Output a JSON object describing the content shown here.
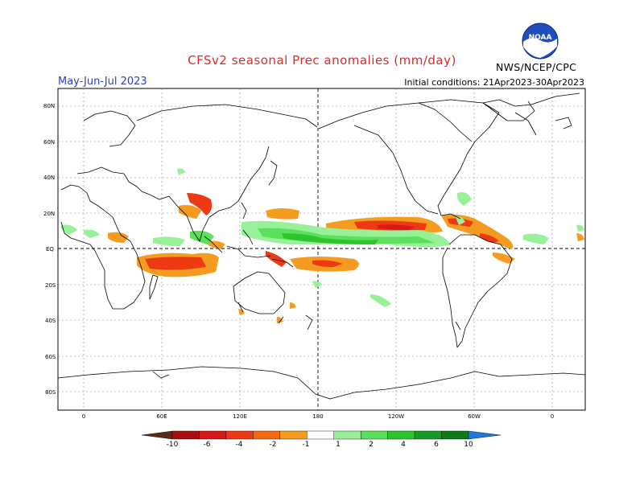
{
  "header": {
    "title": "CFSv2 seasonal Prec anomalies (mm/day)",
    "season": "May-Jun-Jul 2023",
    "initial_conditions": "Initial conditions: 21Apr2023-30Apr2023",
    "agency": "NWS/NCEP/CPC",
    "logo_text": "NOAA"
  },
  "axes": {
    "lat_labels": [
      "80N",
      "60N",
      "40N",
      "20N",
      "EQ",
      "20S",
      "40S",
      "60S",
      "80S"
    ],
    "lon_labels": [
      "0",
      "60E",
      "120E",
      "180",
      "120W",
      "60W",
      "0"
    ]
  },
  "colorbar": {
    "labels": [
      "-10",
      "-6",
      "-4",
      "-2",
      "-1",
      "1",
      "2",
      "4",
      "6",
      "10"
    ],
    "colors": [
      "#5a2a14",
      "#a50f0f",
      "#d61a1a",
      "#ee3a14",
      "#f46a14",
      "#f59b1f",
      "#ffffff",
      "#98f098",
      "#5ce05c",
      "#2ec42e",
      "#169a26",
      "#0e7a18",
      "#1e78e0"
    ]
  },
  "colors": {
    "title": "#d42c2c",
    "season": "#2b3fc8",
    "coast": "#000000",
    "grid": "#777777"
  }
}
